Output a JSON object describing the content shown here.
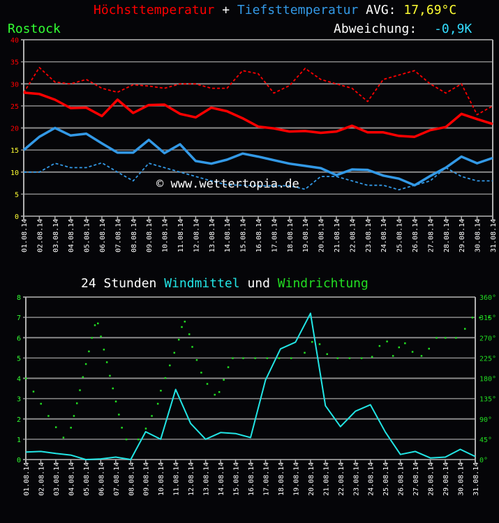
{
  "header": {
    "title_max": "Höchsttemperatur",
    "title_plus": "+",
    "title_min": "Tiefsttemperatur",
    "avg_label": "AVG:",
    "avg_value": "17,69°C",
    "station": "Rostock",
    "deviation_label": "Abweichung:",
    "deviation_value": "-0,9K"
  },
  "wind_header": {
    "prefix": "24 Stunden",
    "mean_label": "Windmittel",
    "and": "und",
    "dir_label": "Windrichtung"
  },
  "watermark": "© www.wettertopia.de",
  "colors": {
    "background": "#050508",
    "max": "#ff0000",
    "min": "#3399e6",
    "avg": "#ffff33",
    "station": "#33ff33",
    "deviation": "#33ddff",
    "wind_line": "#22e5e5",
    "wind_dir": "#22dd22",
    "grid": "#8a8a8a",
    "axis": "#b0b0b0"
  },
  "chart_data": [
    {
      "type": "line",
      "title": "Höchsttemperatur + Tiefsttemperatur",
      "xlabel": "",
      "ylabel": "°C",
      "ylim": [
        0,
        40
      ],
      "yticks": [
        0,
        5,
        10,
        15,
        20,
        25,
        30,
        35,
        40
      ],
      "grid": true,
      "x": [
        "01.08.14",
        "02.08.14",
        "03.08.14",
        "04.08.14",
        "05.08.14",
        "06.08.14",
        "07.08.14",
        "08.08.14",
        "09.08.14",
        "10.08.14",
        "11.08.14",
        "12.08.14",
        "13.08.14",
        "14.08.14",
        "15.08.14",
        "16.08.14",
        "17.08.14",
        "18.08.14",
        "19.08.14",
        "20.08.14",
        "21.08.14",
        "22.08.14",
        "23.08.14",
        "24.08.14",
        "25.08.14",
        "26.08.14",
        "27.08.14",
        "28.08.14",
        "29.08.14",
        "30.08.14",
        "31.08.14"
      ],
      "series": [
        {
          "name": "Höchsttemperatur",
          "style": "solid",
          "color": "#ff0000",
          "values": [
            28.0,
            27.7,
            26.4,
            24.5,
            24.6,
            22.7,
            26.4,
            23.4,
            25.2,
            25.3,
            23.2,
            22.4,
            24.6,
            23.8,
            22.2,
            20.3,
            19.9,
            19.2,
            19.3,
            18.9,
            19.2,
            20.5,
            19.0,
            19.0,
            18.2,
            18.0,
            19.5,
            20.2,
            23.2,
            22.0,
            20.9
          ]
        },
        {
          "name": "Höchsttemperatur (gestrichelt)",
          "style": "dashed",
          "color": "#ff0000",
          "values": [
            28.0,
            33.7,
            30.4,
            30.0,
            31.0,
            29.0,
            28.1,
            29.8,
            29.5,
            29.0,
            30.0,
            30.0,
            29.0,
            29.0,
            33.0,
            32.3,
            27.9,
            29.6,
            33.5,
            31.0,
            30.0,
            29.0,
            26.0,
            31.0,
            32.0,
            33.0,
            30.0,
            27.9,
            30.0,
            23.0,
            25.0
          ]
        },
        {
          "name": "Tiefsttemperatur",
          "style": "solid",
          "color": "#3399e6",
          "values": [
            15.0,
            18.0,
            20.0,
            18.3,
            18.7,
            16.5,
            14.4,
            14.4,
            17.3,
            14.3,
            16.3,
            12.5,
            11.9,
            12.8,
            14.2,
            13.5,
            12.7,
            11.9,
            11.4,
            10.9,
            9.3,
            10.6,
            10.5,
            9.2,
            8.5,
            7.0,
            9.1,
            11.0,
            13.5,
            12.0,
            13.2
          ]
        },
        {
          "name": "Tiefsttemperatur (gestrichelt)",
          "style": "dashed",
          "color": "#3399e6",
          "values": [
            10.0,
            10.0,
            12.0,
            11.0,
            11.0,
            12.1,
            10.0,
            8.0,
            12.0,
            11.0,
            10.0,
            9.0,
            8.0,
            7.1,
            7.0,
            6.9,
            6.9,
            6.9,
            6.1,
            9.0,
            9.0,
            8.0,
            7.0,
            7.0,
            6.0,
            7.0,
            8.0,
            11.0,
            9.0,
            8.0,
            8.0
          ]
        }
      ],
      "annotations": [
        "AVG: 17,69°C",
        "Abweichung: -0,9K",
        "© www.wettertopia.de"
      ]
    },
    {
      "type": "line",
      "title": "24 Stunden Windmittel und Windrichtung",
      "xlabel": "",
      "ylabel": "Windmittel",
      "ylim": [
        0,
        8
      ],
      "yticks": [
        0,
        1,
        2,
        3,
        4,
        5,
        6,
        7,
        8
      ],
      "y2label": "Windrichtung",
      "y2lim": [
        0,
        360
      ],
      "y2ticks": [
        "0°",
        "45°",
        "90°",
        "135°",
        "180°",
        "225°",
        "270°",
        "315°",
        "360°"
      ],
      "grid": true,
      "x": [
        "01.08.14",
        "02.08.14",
        "03.08.14",
        "04.08.14",
        "05.08.14",
        "06.08.14",
        "07.08.14",
        "08.08.14",
        "09.08.14",
        "10.08.14",
        "11.08.14",
        "12.08.14",
        "13.08.14",
        "14.08.14",
        "15.08.14",
        "16.08.14",
        "17.08.14",
        "18.08.14",
        "19.08.14",
        "20.08.14",
        "21.08.14",
        "22.08.14",
        "23.08.14",
        "24.08.14",
        "25.08.14",
        "26.08.14",
        "27.08.14",
        "28.08.14",
        "29.08.14",
        "30.08.14",
        "31.08.14"
      ],
      "series": [
        {
          "name": "Windmittel",
          "style": "solid",
          "color": "#22e5e5",
          "values": [
            0.37,
            0.4,
            0.3,
            0.22,
            0.0,
            0.03,
            0.12,
            0.0,
            1.37,
            1.0,
            3.45,
            1.78,
            1.0,
            1.33,
            1.28,
            1.08,
            3.92,
            5.45,
            5.78,
            7.2,
            2.65,
            1.62,
            2.38,
            2.7,
            1.35,
            0.25,
            0.4,
            0.08,
            0.12,
            0.5,
            0.15
          ]
        },
        {
          "name": "Windrichtung",
          "type": "scatter",
          "axis": "y2",
          "color": "#22dd22",
          "points": [
            [
              0.0,
              180
            ],
            [
              0.5,
              151
            ],
            [
              1.0,
              124
            ],
            [
              1.5,
              97
            ],
            [
              2.0,
              72
            ],
            [
              2.5,
              49
            ],
            [
              3.0,
              71
            ],
            [
              3.2,
              97
            ],
            [
              3.4,
              125
            ],
            [
              3.6,
              154
            ],
            [
              3.8,
              183
            ],
            [
              4.0,
              212
            ],
            [
              4.2,
              240
            ],
            [
              4.4,
              270
            ],
            [
              4.6,
              298
            ],
            [
              4.8,
              302
            ],
            [
              5.0,
              273
            ],
            [
              5.2,
              244
            ],
            [
              5.4,
              216
            ],
            [
              5.6,
              186
            ],
            [
              5.8,
              158
            ],
            [
              6.0,
              129
            ],
            [
              6.2,
              100
            ],
            [
              6.4,
              71
            ],
            [
              6.7,
              45
            ],
            [
              7.5,
              45
            ],
            [
              8.0,
              69
            ],
            [
              8.4,
              97
            ],
            [
              8.8,
              124
            ],
            [
              9.0,
              153
            ],
            [
              9.3,
              181
            ],
            [
              9.6,
              209
            ],
            [
              9.9,
              237
            ],
            [
              10.2,
              266
            ],
            [
              10.4,
              294
            ],
            [
              10.6,
              306
            ],
            [
              10.9,
              278
            ],
            [
              11.1,
              250
            ],
            [
              11.4,
              221
            ],
            [
              11.7,
              193
            ],
            [
              12.1,
              168
            ],
            [
              12.6,
              144
            ],
            [
              12.9,
              150
            ],
            [
              13.2,
              177
            ],
            [
              13.5,
              205
            ],
            [
              13.8,
              225
            ],
            [
              14.5,
              225
            ],
            [
              15.3,
              225
            ],
            [
              16.1,
              225
            ],
            [
              16.9,
              225
            ],
            [
              17.7,
              225
            ],
            [
              18.6,
              237
            ],
            [
              19.1,
              261
            ],
            [
              19.6,
              256
            ],
            [
              20.1,
              234
            ],
            [
              20.8,
              225
            ],
            [
              21.6,
              225
            ],
            [
              22.4,
              225
            ],
            [
              23.1,
              228
            ],
            [
              23.6,
              252
            ],
            [
              24.1,
              262
            ],
            [
              24.5,
              230
            ],
            [
              24.9,
              249
            ],
            [
              25.3,
              258
            ],
            [
              25.8,
              239
            ],
            [
              26.4,
              230
            ],
            [
              26.9,
              246
            ],
            [
              27.4,
              270
            ],
            [
              28.0,
              270
            ],
            [
              28.7,
              270
            ],
            [
              29.3,
              290
            ],
            [
              29.8,
              315
            ],
            [
              30.3,
              315
            ],
            [
              30.9,
              315
            ]
          ]
        }
      ]
    }
  ]
}
